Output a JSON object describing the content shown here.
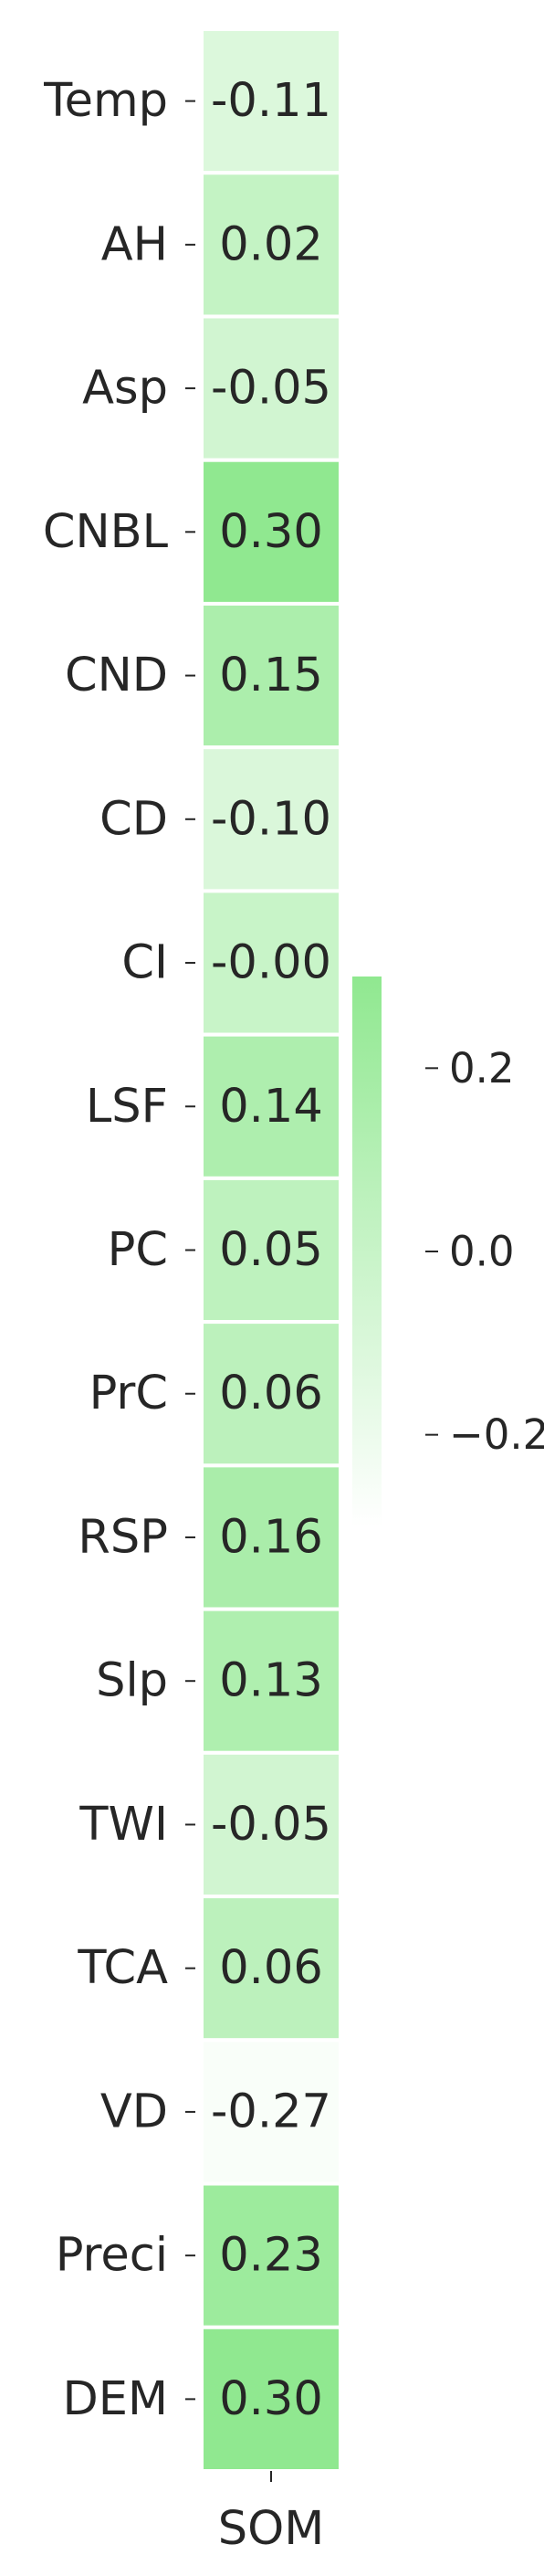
{
  "chart_data": {
    "type": "heatmap",
    "rows": [
      "Temp",
      "AH",
      "Asp",
      "CNBL",
      "CND",
      "CD",
      "CI",
      "LSF",
      "PC",
      "PrC",
      "RSP",
      "Slp",
      "TWI",
      "TCA",
      "VD",
      "Preci",
      "DEM"
    ],
    "columns": [
      "SOM"
    ],
    "values": [
      [
        -0.11
      ],
      [
        0.02
      ],
      [
        -0.05
      ],
      [
        0.3
      ],
      [
        0.15
      ],
      [
        -0.1
      ],
      [
        -0.0
      ],
      [
        0.14
      ],
      [
        0.05
      ],
      [
        0.06
      ],
      [
        0.16
      ],
      [
        0.13
      ],
      [
        -0.05
      ],
      [
        0.06
      ],
      [
        -0.27
      ],
      [
        0.23
      ],
      [
        0.3
      ]
    ],
    "value_labels": [
      "-0.11",
      "0.02",
      "-0.05",
      "0.30",
      "0.15",
      "-0.10",
      "-0.00",
      "0.14",
      "0.05",
      "0.06",
      "0.16",
      "0.13",
      "-0.05",
      "0.06",
      "-0.27",
      "0.23",
      "0.30"
    ],
    "colorbar": {
      "vmin": -0.3,
      "vmax": 0.3,
      "ticks": [
        0.2,
        0.0,
        -0.2
      ],
      "tick_labels": [
        "0.2",
        "0.0",
        "−0.2"
      ],
      "color_low": "#ffffff",
      "color_high": "#90e890"
    },
    "legend": "colorbar-right",
    "grid": false
  }
}
